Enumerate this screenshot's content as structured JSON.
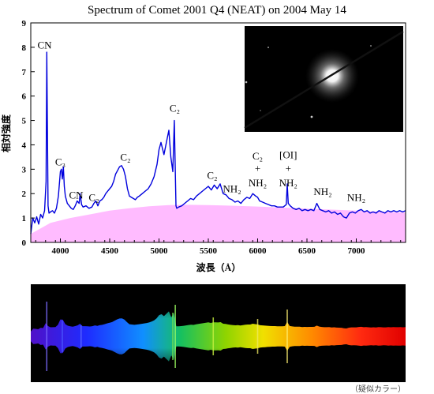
{
  "chart_data": {
    "type": "line",
    "title": "Spectrum of Comet 2001 Q4 (NEAT) on 2004 May 14",
    "xlabel": "波長（Å）",
    "ylabel": "相対強度",
    "xlim": [
      3700,
      7500
    ],
    "ylim": [
      0,
      9
    ],
    "xticks": [
      4000,
      4500,
      5000,
      5500,
      6000,
      6500,
      7000
    ],
    "yticks": [
      0,
      1,
      2,
      3,
      4,
      5,
      6,
      7,
      8,
      9
    ],
    "grid": false,
    "series": [
      {
        "color": "#0000dd",
        "x": [
          3700,
          3720,
          3740,
          3760,
          3780,
          3800,
          3820,
          3840,
          3855,
          3862,
          3868,
          3875,
          3885,
          3900,
          3920,
          3940,
          3960,
          3980,
          4000,
          4010,
          4020,
          4030,
          4040,
          4050,
          4070,
          4090,
          4110,
          4130,
          4150,
          4170,
          4190,
          4200,
          4215,
          4230,
          4260,
          4290,
          4320,
          4340,
          4360,
          4380,
          4400,
          4420,
          4440,
          4460,
          4480,
          4500,
          4520,
          4540,
          4560,
          4580,
          4600,
          4620,
          4640,
          4660,
          4680,
          4700,
          4720,
          4740,
          4760,
          4780,
          4800,
          4830,
          4860,
          4890,
          4920,
          4950,
          4980,
          5000,
          5020,
          5050,
          5080,
          5100,
          5120,
          5140,
          5155,
          5165,
          5172,
          5180,
          5200,
          5230,
          5260,
          5290,
          5320,
          5350,
          5380,
          5410,
          5440,
          5470,
          5500,
          5530,
          5560,
          5590,
          5620,
          5650,
          5680,
          5710,
          5740,
          5770,
          5800,
          5830,
          5860,
          5890,
          5920,
          5950,
          5980,
          6000,
          6020,
          6050,
          6080,
          6110,
          6140,
          6170,
          6200,
          6230,
          6260,
          6290,
          6300,
          6310,
          6330,
          6360,
          6390,
          6420,
          6450,
          6480,
          6510,
          6540,
          6570,
          6600,
          6630,
          6660,
          6690,
          6720,
          6750,
          6780,
          6810,
          6840,
          6870,
          6900,
          6930,
          6960,
          6990,
          7020,
          7050,
          7080,
          7110,
          7140,
          7170,
          7200,
          7230,
          7260,
          7290,
          7320,
          7350,
          7380,
          7410,
          7440,
          7470,
          7500
        ],
        "y": [
          0.35,
          1.0,
          0.8,
          1.05,
          0.75,
          1.15,
          1.0,
          1.3,
          2.5,
          7.8,
          5.0,
          1.5,
          1.2,
          1.25,
          1.3,
          1.2,
          1.4,
          1.9,
          2.9,
          3.0,
          2.6,
          3.1,
          2.3,
          1.9,
          1.6,
          1.5,
          1.4,
          1.35,
          1.5,
          1.7,
          1.6,
          2.0,
          1.55,
          1.45,
          1.5,
          1.4,
          1.45,
          1.6,
          1.7,
          1.5,
          1.7,
          1.75,
          1.85,
          2.0,
          2.1,
          2.2,
          2.3,
          2.5,
          2.8,
          2.95,
          3.1,
          3.15,
          3.0,
          2.7,
          2.2,
          1.9,
          1.85,
          1.8,
          1.75,
          1.85,
          1.9,
          2.0,
          2.1,
          2.2,
          2.4,
          2.7,
          3.2,
          3.8,
          4.1,
          3.6,
          4.2,
          4.6,
          3.5,
          2.9,
          5.0,
          3.0,
          1.5,
          1.4,
          1.45,
          1.5,
          1.6,
          1.7,
          1.8,
          1.75,
          1.9,
          2.0,
          2.1,
          2.2,
          2.3,
          2.15,
          2.35,
          2.2,
          2.4,
          2.0,
          1.95,
          1.8,
          1.75,
          1.65,
          1.7,
          1.6,
          1.75,
          1.85,
          1.8,
          2.0,
          1.9,
          1.85,
          1.7,
          1.65,
          1.6,
          1.55,
          1.5,
          1.5,
          1.45,
          1.45,
          1.45,
          1.55,
          2.4,
          1.6,
          1.5,
          1.4,
          1.35,
          1.4,
          1.3,
          1.35,
          1.3,
          1.35,
          1.3,
          1.6,
          1.35,
          1.3,
          1.25,
          1.3,
          1.2,
          1.25,
          1.15,
          1.2,
          1.05,
          1.0,
          1.2,
          1.25,
          1.2,
          1.3,
          1.35,
          1.25,
          1.3,
          1.2,
          1.25,
          1.2,
          1.3,
          1.25,
          1.2,
          1.3,
          1.25,
          1.3,
          1.25,
          1.3,
          1.25,
          1.3
        ]
      },
      {
        "color": "#ffbbff",
        "fill": true,
        "x": [
          3700,
          3900,
          4100,
          4300,
          4500,
          4700,
          4900,
          5100,
          5300,
          5500,
          5700,
          6000,
          6300,
          6600,
          6900,
          7200,
          7500
        ],
        "y": [
          0.35,
          0.8,
          1.0,
          1.15,
          1.3,
          1.4,
          1.48,
          1.53,
          1.54,
          1.53,
          1.51,
          1.47,
          1.42,
          1.37,
          1.32,
          1.27,
          1.22
        ]
      }
    ],
    "annotations": [
      {
        "text": "CN",
        "x": 3840,
        "y": 7.95
      },
      {
        "text": "C₃",
        "x": 4000,
        "y": 3.15
      },
      {
        "text": "CN",
        "x": 4160,
        "y": 1.8
      },
      {
        "text": "C₂",
        "x": 4340,
        "y": 1.7
      },
      {
        "text": "C₂",
        "x": 4660,
        "y": 3.35
      },
      {
        "text": "C₂",
        "x": 5160,
        "y": 5.35
      },
      {
        "text": "C₂",
        "x": 5540,
        "y": 2.6
      },
      {
        "text": "NH₂",
        "x": 5740,
        "y": 2.05
      },
      {
        "text": "C₂",
        "x": 6000,
        "y": 3.4
      },
      {
        "text": "+",
        "x": 6000,
        "y": 2.9
      },
      {
        "text": "NH₂",
        "x": 6000,
        "y": 2.3
      },
      {
        "text": "[OI]",
        "x": 6310,
        "y": 3.45
      },
      {
        "text": "+",
        "x": 6310,
        "y": 2.9
      },
      {
        "text": "NH₂",
        "x": 6310,
        "y": 2.3
      },
      {
        "text": "NH₂",
        "x": 6660,
        "y": 1.95
      },
      {
        "text": "NH₂",
        "x": 7000,
        "y": 1.7
      }
    ]
  },
  "inset": {
    "description_icon": "comet-photo-icon"
  },
  "strip": {
    "icon": "spectrum-strip-icon"
  },
  "caption": "（疑似カラー）"
}
